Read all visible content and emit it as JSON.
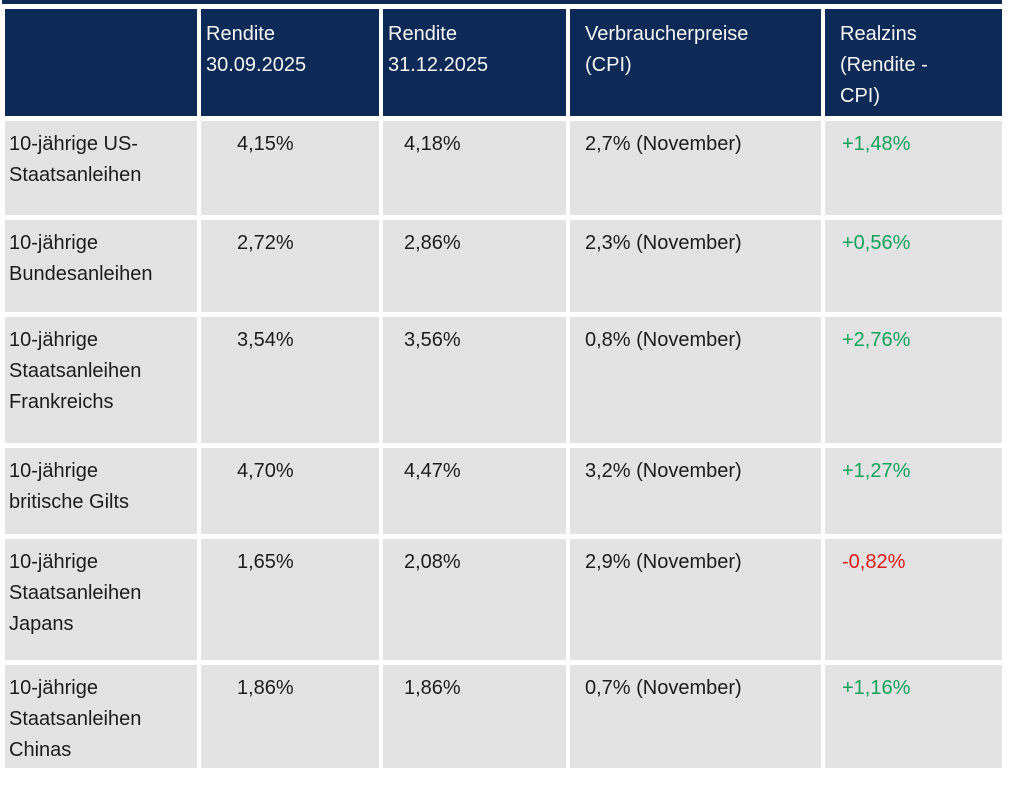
{
  "colors": {
    "header_bg": "#0d2a56",
    "row_bg": "#e3e3e3",
    "header_text": "#f7f7f7",
    "body_text": "#1c1c1c",
    "positive_value": "#12a35a",
    "negative_value": "#de1b1b",
    "gutter": "#ffffff"
  },
  "table": {
    "headers": [
      "",
      "Rendite\n30.09.2025",
      "Rendite\n31.12.2025",
      "Verbraucherpreise\n(CPI)",
      "Realzins\n(Rendite -\nCPI)"
    ],
    "rows": [
      {
        "label": "10-jährige US-\nStaatsanleihen",
        "rendite_3009": "4,15%",
        "rendite_3112": "4,18%",
        "cpi": "2,7% (November)",
        "realzins": "+1,48%",
        "trend": "positive"
      },
      {
        "label": "10-jährige\nBundesanleihen",
        "rendite_3009": "2,72%",
        "rendite_3112": "2,86%",
        "cpi": "2,3% (November)",
        "realzins": "+0,56%",
        "trend": "positive"
      },
      {
        "label": "10-jährige\nStaatsanleihen\nFrankreichs",
        "rendite_3009": "3,54%",
        "rendite_3112": "3,56%",
        "cpi": "0,8% (November)",
        "realzins": "+2,76%",
        "trend": "positive"
      },
      {
        "label": "10-jährige\nbritische Gilts",
        "rendite_3009": "4,70%",
        "rendite_3112": "4,47%",
        "cpi": "3,2% (November)",
        "realzins": "+1,27%",
        "trend": "positive"
      },
      {
        "label": "10-jährige\nStaatsanleihen\nJapans",
        "rendite_3009": "1,65%",
        "rendite_3112": "2,08%",
        "cpi": "2,9% (November)",
        "realzins": "-0,82%",
        "trend": "negative"
      },
      {
        "label": "10-jährige\nStaatsanleihen\nChinas",
        "rendite_3009": "1,86%",
        "rendite_3112": "1,86%",
        "cpi": "0,7% (November)",
        "realzins": "+1,16%",
        "trend": "positive"
      }
    ]
  },
  "chart_data": {
    "type": "table",
    "columns": [
      "",
      "Rendite 30.09.2025",
      "Rendite 31.12.2025",
      "Verbraucherpreise (CPI)",
      "Realzins (Rendite - CPI)"
    ],
    "rows": [
      [
        "10-jährige US-Staatsanleihen",
        "4,15%",
        "4,18%",
        "2,7% (November)",
        "+1,48%"
      ],
      [
        "10-jährige Bundesanleihen",
        "2,72%",
        "2,86%",
        "2,3% (November)",
        "+0,56%"
      ],
      [
        "10-jährige Staatsanleihen Frankreichs",
        "3,54%",
        "3,56%",
        "0,8% (November)",
        "+2,76%"
      ],
      [
        "10-jährige britische Gilts",
        "4,70%",
        "4,47%",
        "3,2% (November)",
        "+1,27%"
      ],
      [
        "10-jährige Staatsanleihen Japans",
        "1,65%",
        "2,08%",
        "2,9% (November)",
        "-0,82%"
      ],
      [
        "10-jährige Staatsanleihen Chinas",
        "1,86%",
        "1,86%",
        "0,7% (November)",
        "+1,16%"
      ]
    ]
  }
}
